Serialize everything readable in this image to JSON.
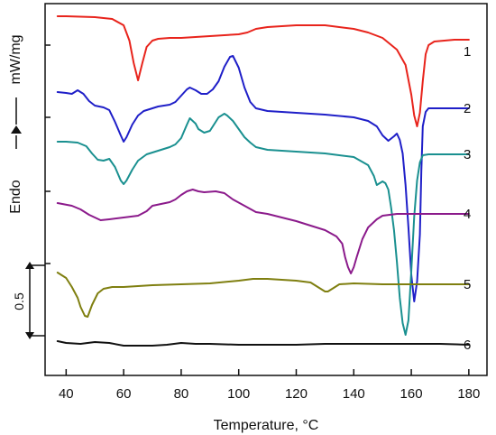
{
  "chart_data": {
    "type": "line",
    "xlabel": "Temperature, °C",
    "ylabel_left": "Endo",
    "ylabel_right": "mW/mg",
    "scale_bar_label": "0.5",
    "xlim": [
      33,
      186
    ],
    "x_ticks": [
      40,
      60,
      80,
      100,
      120,
      140,
      160,
      180
    ],
    "grid": false,
    "series": [
      {
        "name": "1",
        "color": "#e8241c",
        "points": [
          [
            37,
            18
          ],
          [
            40,
            18
          ],
          [
            50,
            19
          ],
          [
            56,
            21
          ],
          [
            60,
            28
          ],
          [
            62,
            45
          ],
          [
            63.5,
            70
          ],
          [
            65,
            89
          ],
          [
            66.5,
            70
          ],
          [
            68,
            52
          ],
          [
            70,
            45
          ],
          [
            72,
            43
          ],
          [
            76,
            42
          ],
          [
            80,
            42
          ],
          [
            90,
            40
          ],
          [
            100,
            38
          ],
          [
            103,
            36
          ],
          [
            106,
            32
          ],
          [
            110,
            30
          ],
          [
            120,
            28
          ],
          [
            130,
            28
          ],
          [
            140,
            32
          ],
          [
            145,
            36
          ],
          [
            150,
            42
          ],
          [
            155,
            55
          ],
          [
            158,
            72
          ],
          [
            160,
            105
          ],
          [
            161,
            128
          ],
          [
            162,
            140
          ],
          [
            163,
            125
          ],
          [
            164,
            90
          ],
          [
            165,
            60
          ],
          [
            166,
            50
          ],
          [
            168,
            46
          ],
          [
            175,
            44
          ],
          [
            180,
            44
          ]
        ]
      },
      {
        "name": "2",
        "color": "#1f1fc8",
        "points": [
          [
            37,
            102
          ],
          [
            40,
            103
          ],
          [
            42,
            104
          ],
          [
            44,
            100
          ],
          [
            46,
            104
          ],
          [
            48,
            112
          ],
          [
            50,
            117
          ],
          [
            53,
            119
          ],
          [
            55,
            122
          ],
          [
            57,
            135
          ],
          [
            59,
            150
          ],
          [
            60,
            157
          ],
          [
            61,
            152
          ],
          [
            63,
            138
          ],
          [
            65,
            128
          ],
          [
            67,
            123
          ],
          [
            70,
            120
          ],
          [
            72,
            118
          ],
          [
            74,
            117
          ],
          [
            76,
            116
          ],
          [
            78,
            113
          ],
          [
            80,
            106
          ],
          [
            82,
            99
          ],
          [
            83,
            97
          ],
          [
            85,
            100
          ],
          [
            87,
            104
          ],
          [
            89,
            104
          ],
          [
            91,
            99
          ],
          [
            93,
            90
          ],
          [
            95,
            74
          ],
          [
            97,
            63
          ],
          [
            98,
            62
          ],
          [
            100,
            75
          ],
          [
            102,
            97
          ],
          [
            104,
            113
          ],
          [
            106,
            120
          ],
          [
            110,
            123
          ],
          [
            120,
            125
          ],
          [
            130,
            127
          ],
          [
            140,
            130
          ],
          [
            145,
            134
          ],
          [
            148,
            140
          ],
          [
            150,
            150
          ],
          [
            152,
            156
          ],
          [
            154,
            151
          ],
          [
            155,
            148
          ],
          [
            156,
            155
          ],
          [
            157,
            170
          ],
          [
            158,
            205
          ],
          [
            159,
            252
          ],
          [
            160,
            305
          ],
          [
            161,
            334
          ],
          [
            162,
            312
          ],
          [
            163,
            260
          ],
          [
            163.5,
            190
          ],
          [
            164,
            140
          ],
          [
            165,
            124
          ],
          [
            166,
            120
          ],
          [
            170,
            120
          ],
          [
            180,
            120
          ]
        ]
      },
      {
        "name": "3",
        "color": "#1a9090",
        "points": [
          [
            37,
            157
          ],
          [
            40,
            157
          ],
          [
            44,
            158
          ],
          [
            47,
            162
          ],
          [
            49,
            170
          ],
          [
            51,
            177
          ],
          [
            53,
            178
          ],
          [
            55,
            176
          ],
          [
            57,
            185
          ],
          [
            59,
            200
          ],
          [
            60,
            204
          ],
          [
            61,
            200
          ],
          [
            63,
            188
          ],
          [
            65,
            178
          ],
          [
            68,
            171
          ],
          [
            72,
            167
          ],
          [
            76,
            163
          ],
          [
            78,
            160
          ],
          [
            80,
            153
          ],
          [
            82,
            138
          ],
          [
            83,
            131
          ],
          [
            85,
            137
          ],
          [
            86,
            143
          ],
          [
            88,
            147
          ],
          [
            90,
            145
          ],
          [
            91,
            140
          ],
          [
            93,
            130
          ],
          [
            95,
            126
          ],
          [
            96,
            128
          ],
          [
            98,
            134
          ],
          [
            100,
            143
          ],
          [
            102,
            152
          ],
          [
            104,
            158
          ],
          [
            106,
            163
          ],
          [
            110,
            166
          ],
          [
            120,
            168
          ],
          [
            130,
            170
          ],
          [
            140,
            174
          ],
          [
            145,
            183
          ],
          [
            147,
            195
          ],
          [
            148,
            205
          ],
          [
            150,
            201
          ],
          [
            151,
            203
          ],
          [
            152,
            210
          ],
          [
            153,
            230
          ],
          [
            154,
            255
          ],
          [
            155,
            290
          ],
          [
            156,
            330
          ],
          [
            157,
            358
          ],
          [
            158,
            371
          ],
          [
            159,
            355
          ],
          [
            160,
            300
          ],
          [
            161,
            240
          ],
          [
            162,
            200
          ],
          [
            163,
            180
          ],
          [
            164,
            172
          ],
          [
            166,
            171
          ],
          [
            180,
            171
          ]
        ]
      },
      {
        "name": "4",
        "color": "#8b1a8b",
        "points": [
          [
            37,
            225
          ],
          [
            42,
            228
          ],
          [
            45,
            232
          ],
          [
            48,
            238
          ],
          [
            52,
            244
          ],
          [
            55,
            243
          ],
          [
            60,
            241
          ],
          [
            65,
            239
          ],
          [
            68,
            234
          ],
          [
            70,
            228
          ],
          [
            73,
            226
          ],
          [
            76,
            224
          ],
          [
            78,
            221
          ],
          [
            80,
            216
          ],
          [
            82,
            212
          ],
          [
            84,
            210
          ],
          [
            86,
            212
          ],
          [
            88,
            213
          ],
          [
            92,
            212
          ],
          [
            95,
            214
          ],
          [
            98,
            221
          ],
          [
            102,
            228
          ],
          [
            106,
            235
          ],
          [
            110,
            237
          ],
          [
            115,
            241
          ],
          [
            120,
            245
          ],
          [
            125,
            250
          ],
          [
            130,
            255
          ],
          [
            134,
            262
          ],
          [
            136,
            270
          ],
          [
            137,
            285
          ],
          [
            138,
            296
          ],
          [
            139,
            303
          ],
          [
            140,
            296
          ],
          [
            141,
            285
          ],
          [
            143,
            265
          ],
          [
            145,
            252
          ],
          [
            148,
            243
          ],
          [
            150,
            239
          ],
          [
            155,
            237
          ],
          [
            160,
            237
          ],
          [
            170,
            237
          ],
          [
            180,
            237
          ]
        ]
      },
      {
        "name": "5",
        "color": "#7f7f10",
        "points": [
          [
            37,
            302
          ],
          [
            40,
            308
          ],
          [
            42,
            318
          ],
          [
            44,
            330
          ],
          [
            45,
            340
          ],
          [
            46.5,
            350
          ],
          [
            47.5,
            351
          ],
          [
            49,
            338
          ],
          [
            51,
            325
          ],
          [
            53,
            320
          ],
          [
            56,
            318
          ],
          [
            60,
            318
          ],
          [
            70,
            316
          ],
          [
            80,
            315
          ],
          [
            90,
            314
          ],
          [
            100,
            311
          ],
          [
            105,
            309
          ],
          [
            110,
            309
          ],
          [
            115,
            310
          ],
          [
            120,
            311
          ],
          [
            125,
            313
          ],
          [
            127,
            317
          ],
          [
            129,
            321
          ],
          [
            130,
            323
          ],
          [
            131,
            323
          ],
          [
            133,
            319
          ],
          [
            135,
            315
          ],
          [
            140,
            314
          ],
          [
            150,
            315
          ],
          [
            160,
            315
          ],
          [
            170,
            315
          ],
          [
            180,
            315
          ]
        ]
      },
      {
        "name": "6",
        "color": "#111111",
        "points": [
          [
            37,
            378
          ],
          [
            40,
            380
          ],
          [
            45,
            381
          ],
          [
            50,
            379
          ],
          [
            55,
            380
          ],
          [
            60,
            383
          ],
          [
            65,
            383
          ],
          [
            70,
            383
          ],
          [
            75,
            382
          ],
          [
            80,
            380
          ],
          [
            85,
            381
          ],
          [
            90,
            381
          ],
          [
            100,
            382
          ],
          [
            110,
            382
          ],
          [
            120,
            382
          ],
          [
            130,
            381
          ],
          [
            140,
            381
          ],
          [
            150,
            381
          ],
          [
            160,
            381
          ],
          [
            170,
            381
          ],
          [
            180,
            382
          ]
        ]
      }
    ]
  }
}
